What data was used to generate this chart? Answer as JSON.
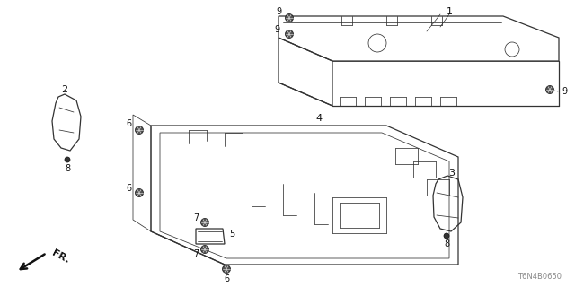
{
  "background_color": "#ffffff",
  "diagram_code": "T6N4B0650",
  "fr_label": "FR.",
  "line_color": "#333333",
  "label_color": "#111111"
}
